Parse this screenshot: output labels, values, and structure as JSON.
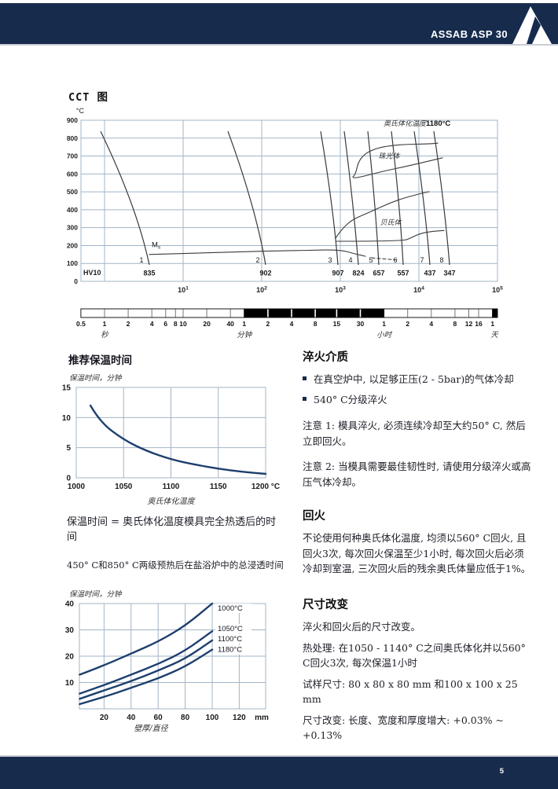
{
  "header": {
    "title": "ASSAB ASP 30"
  },
  "footer": {
    "page_number": "5"
  },
  "colors": {
    "navy": "#172b4d",
    "curve_navy": "#1d3f6e",
    "grid": "#a2b4c6",
    "cct_line": "#3a3a3a"
  },
  "cct": {
    "title": "CCT 图"
  },
  "notes": {
    "holding_definition": "保温时间 = 奥氏体化温度模具完全热透后的时间",
    "immersion_intro": "450° C和850° C两级预热后在盐浴炉中的总浸透时间"
  },
  "sections": {
    "quench": {
      "heading": "淬火介质",
      "bullets": [
        "在真空炉中, 以足够正压(2 - 5bar)的气体冷却",
        "540° C分级淬火"
      ],
      "notes": [
        "注意 1: 模具淬火, 必须连续冷却至大约50° C, 然后立即回火。",
        "注意 2: 当模具需要最佳韧性时, 请使用分级淬火或高压气体冷却。"
      ]
    },
    "temper": {
      "heading": "回火",
      "body": "不论使用何种奥氏体化温度, 均须以560° C回火, 且回火3次, 每次回火保温至少1小时, 每次回火后必须冷却到室温, 三次回火后的残余奥氏体量应低于1%。"
    },
    "dimension": {
      "heading": "尺寸改变",
      "lines": [
        "淬火和回火后的尺寸改变。",
        "热处理: 在1050 - 1140° C之间奥氏体化并以560° C回火3次, 每次保温1小时",
        "试样尺寸: 80 x 80 x 80 mm 和100 x 100 x 25 mm",
        "尺寸改变: 长度、宽度和厚度增大: +0.03% ~ +0.13%"
      ]
    }
  },
  "time_scale": {
    "sections": [
      {
        "unit": "秒",
        "unit_d": 0,
        "fill": "white",
        "from_d": -0.301,
        "to_d": 1.778,
        "ticks": [
          {
            "label": "0.5",
            "d": -0.301
          },
          {
            "label": "1",
            "d": 0
          },
          {
            "label": "2",
            "d": 0.301
          },
          {
            "label": "4",
            "d": 0.602
          },
          {
            "label": "6",
            "d": 0.778
          },
          {
            "label": "8",
            "d": 0.903
          },
          {
            "label": "10",
            "d": 1.0
          },
          {
            "label": "20",
            "d": 1.301
          },
          {
            "label": "40",
            "d": 1.602
          }
        ]
      },
      {
        "unit": "分钟",
        "unit_d": 1.778,
        "fill": "black",
        "from_d": 1.778,
        "to_d": 3.556,
        "ticks": [
          {
            "label": "1",
            "d": 1.778
          },
          {
            "label": "2",
            "d": 2.079
          },
          {
            "label": "4",
            "d": 2.38
          },
          {
            "label": "8",
            "d": 2.681
          },
          {
            "label": "15",
            "d": 2.954
          },
          {
            "label": "30",
            "d": 3.255
          }
        ]
      },
      {
        "unit": "小时",
        "unit_d": 3.556,
        "fill": "white",
        "from_d": 3.556,
        "to_d": 4.937,
        "ticks": [
          {
            "label": "1",
            "d": 3.556
          },
          {
            "label": "2",
            "d": 3.857
          },
          {
            "label": "4",
            "d": 4.158
          },
          {
            "label": "8",
            "d": 4.459
          },
          {
            "label": "12",
            "d": 4.635
          },
          {
            "label": "16",
            "d": 4.76
          }
        ]
      },
      {
        "unit": "天",
        "unit_d": 4.96,
        "fill": "black",
        "from_d": 4.937,
        "to_d": 5.0,
        "ticks": [
          {
            "label": "1",
            "d": 4.937
          }
        ]
      }
    ]
  },
  "chart_data": [
    {
      "type": "line",
      "name": "cct_diagram",
      "title": "CCT 图",
      "ylabel": "°C",
      "ylim": [
        0,
        900
      ],
      "y_ticks": [
        900,
        800,
        700,
        600,
        500,
        400,
        300,
        200,
        100,
        0
      ],
      "x_scale": "log10_seconds",
      "x_range_decades": [
        -0.3,
        5
      ],
      "x_decades": [
        {
          "base": "10",
          "exp": "1",
          "d": 1
        },
        {
          "base": "10",
          "exp": "2",
          "d": 2
        },
        {
          "base": "10",
          "exp": "3",
          "d": 3
        },
        {
          "base": "10",
          "exp": "4",
          "d": 4
        },
        {
          "base": "10",
          "exp": "5",
          "d": 5
        }
      ],
      "hv_label": "HV10",
      "austenitize_label": "奥氏体化温度",
      "austenitize_temp": "1180°C",
      "pearlite_label": "珠光体",
      "bainite_label": "贝氏体",
      "ms_label": "M",
      "ms_sub": "s",
      "cooling_curves": [
        {
          "n": "1",
          "hv": "835",
          "pts": [
            [
              -0.05,
              838
            ],
            [
              0.41,
              420
            ],
            [
              0.57,
              92
            ]
          ]
        },
        {
          "n": "2",
          "hv": "902",
          "pts": [
            [
              1.57,
              838
            ],
            [
              1.92,
              420
            ],
            [
              2.05,
              92
            ]
          ]
        },
        {
          "n": "3",
          "hv": "907",
          "pts": [
            [
              2.75,
              838
            ],
            [
              2.91,
              420
            ],
            [
              2.97,
              92
            ]
          ]
        },
        {
          "n": "4",
          "hv": "824",
          "pts": [
            [
              3.05,
              838
            ],
            [
              3.17,
              420
            ],
            [
              3.23,
              92
            ]
          ]
        },
        {
          "n": "5",
          "hv": "657",
          "pts": [
            [
              3.35,
              838
            ],
            [
              3.45,
              420
            ],
            [
              3.49,
              92
            ]
          ]
        },
        {
          "n": "6",
          "hv": "557",
          "pts": [
            [
              3.65,
              838
            ],
            [
              3.76,
              420
            ],
            [
              3.8,
              92
            ]
          ]
        },
        {
          "n": "7",
          "hv": "437",
          "pts": [
            [
              3.94,
              838
            ],
            [
              4.08,
              420
            ],
            [
              4.14,
              92
            ]
          ]
        },
        {
          "n": "8",
          "hv": "347",
          "pts": [
            [
              4.19,
              838
            ],
            [
              4.33,
              420
            ],
            [
              4.39,
              92
            ]
          ]
        }
      ],
      "ms_line": [
        [
          0.57,
          150
        ],
        [
          1.5,
          163
        ],
        [
          2.6,
          174
        ],
        [
          3.0,
          176
        ],
        [
          3.2,
          152
        ],
        [
          3.32,
          140
        ]
      ],
      "ms_dashed": [
        [
          3.4,
          131
        ],
        [
          3.74,
          119
        ]
      ],
      "bainite_ms": [
        [
          2.95,
          224
        ],
        [
          3.8,
          224
        ],
        [
          3.9,
          243
        ],
        [
          4.02,
          268
        ],
        [
          4.18,
          280
        ],
        [
          4.32,
          284
        ]
      ],
      "bainite_upper": [
        [
          2.94,
          241
        ],
        [
          3.07,
          329
        ],
        [
          3.37,
          386
        ],
        [
          3.7,
          452
        ],
        [
          4.07,
          496
        ],
        [
          4.13,
          501
        ]
      ],
      "pearlite_outline": [
        [
          4.3,
          690
        ],
        [
          3.87,
          645
        ],
        [
          3.54,
          615
        ],
        [
          3.19,
          575
        ],
        [
          3.15,
          584
        ],
        [
          3.19,
          593
        ],
        [
          3.24,
          685
        ],
        [
          3.4,
          738
        ],
        [
          3.7,
          764
        ],
        [
          4.15,
          768
        ],
        [
          4.24,
          772
        ]
      ],
      "label_pos": {
        "pearlite": [
          3.62,
          700
        ],
        "bainite": [
          3.64,
          330
        ],
        "austenitize": [
          3.55,
          878
        ],
        "ms": [
          0.6,
          200
        ]
      }
    },
    {
      "type": "line",
      "name": "recommended_holding_time",
      "title": "推荐保温时间",
      "ylabel": "保温时间，分钟",
      "xlabel": "奥氏体化温度",
      "x": [
        1015,
        1025,
        1050,
        1075,
        1100,
        1125,
        1150,
        1175,
        1200
      ],
      "values": [
        12,
        9.3,
        6.3,
        4.4,
        3.05,
        2.2,
        1.5,
        1.0,
        0.65
      ],
      "x_ticks": [
        {
          "v": 1000,
          "label": "1000"
        },
        {
          "v": 1050,
          "label": "1050"
        },
        {
          "v": 1100,
          "label": "1100"
        },
        {
          "v": 1150,
          "label": "1150"
        },
        {
          "v": 1200,
          "label": "1200 °C"
        }
      ],
      "y_ticks": [
        0,
        5,
        10,
        15
      ],
      "xlim": [
        1000,
        1200
      ],
      "ylim": [
        0,
        15
      ]
    },
    {
      "type": "line",
      "name": "total_immersion_time_salt_bath",
      "ylabel": "保温时间，分钟",
      "xlabel": "壁厚/直径",
      "x_unit": "mm",
      "x_ticks": [
        20,
        40,
        60,
        80,
        100,
        120
      ],
      "y_ticks": [
        10,
        20,
        30,
        40
      ],
      "xlim": [
        0,
        140
      ],
      "ylim": [
        0,
        40
      ],
      "series": [
        {
          "name": "1000°C",
          "x": [
            2,
            20,
            40,
            60,
            80,
            100
          ],
          "values": [
            13,
            16.5,
            21,
            25.5,
            31.5,
            40
          ]
        },
        {
          "name": "1050°C",
          "x": [
            2,
            20,
            40,
            60,
            80,
            100
          ],
          "values": [
            5.8,
            9,
            13,
            17,
            22,
            29.5
          ]
        },
        {
          "name": "1100°C",
          "x": [
            2,
            20,
            40,
            60,
            80,
            100
          ],
          "values": [
            3.8,
            7,
            10.5,
            14.5,
            19,
            26
          ]
        },
        {
          "name": "1180°C",
          "x": [
            2,
            20,
            40,
            60,
            80,
            100
          ],
          "values": [
            1.8,
            4.5,
            8,
            11.5,
            16,
            22.5
          ]
        }
      ]
    }
  ]
}
